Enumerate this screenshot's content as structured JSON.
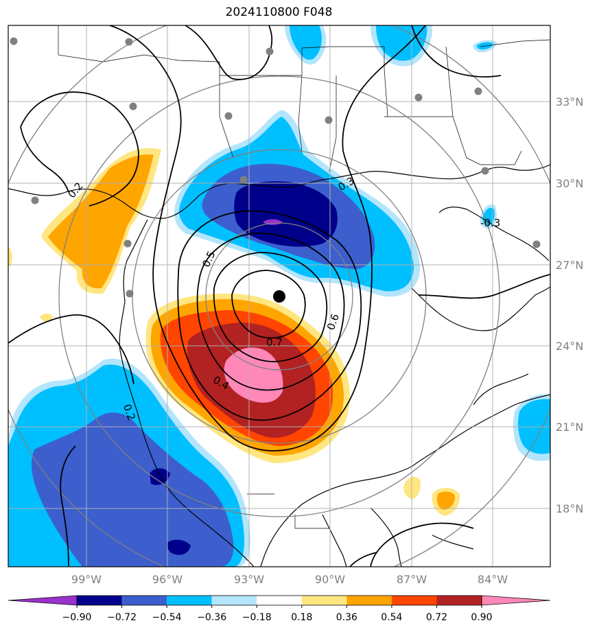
{
  "title": "2024110800 F048",
  "colors": {
    "pos_0_18_0_36": "#ffe680",
    "pos_0_36_0_54": "#ffa500",
    "pos_0_54_0_72": "#ff4500",
    "pos_0_72_0_90": "#b22222",
    "pos_gt_0_90": "#ff88b8",
    "neg_0_18_0_36": "#b3e5fc",
    "neg_0_36_0_54": "#00bfff",
    "neg_0_54_0_72": "#3c5fcd",
    "neg_0_72_0_90": "#00008b",
    "neg_lt_0_90": "#9932cc"
  },
  "lat_labels": [
    "33°N",
    "30°N",
    "27°N",
    "24°N",
    "21°N",
    "18°N"
  ],
  "lon_labels": [
    "99°W",
    "96°W",
    "93°W",
    "90°W",
    "87°W",
    "84°W"
  ],
  "colorbar": {
    "ticks": [
      "−0.90",
      "−0.72",
      "−0.54",
      "−0.36",
      "−0.18",
      "0.18",
      "0.36",
      "0.54",
      "0.72",
      "0.90"
    ],
    "colors": [
      "#9932cc",
      "#00008b",
      "#3c5fcd",
      "#00bfff",
      "#b3e5fc",
      "#ffffff",
      "#ffe680",
      "#ffa500",
      "#ff4500",
      "#b22222",
      "#ff88b8"
    ]
  },
  "contour_labels": [
    "0.2",
    "0.5",
    "0.6",
    "0.7",
    "0.4",
    "0.3",
    "-0.3",
    "0.2"
  ],
  "storm_center_icon": "black-dot-icon"
}
